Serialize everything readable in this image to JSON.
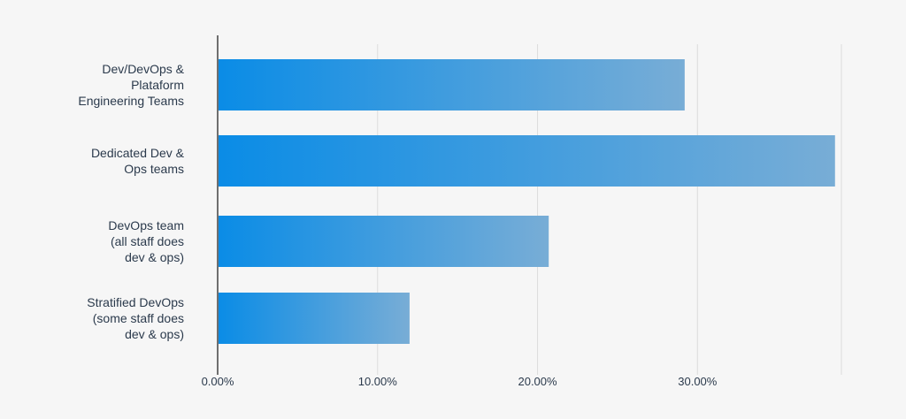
{
  "chart_data": {
    "type": "bar",
    "orientation": "horizontal",
    "title": "",
    "xlabel": "",
    "ylabel": "",
    "categories": [
      [
        "Dev/DevOps &",
        "Plataform",
        "Engineering Teams"
      ],
      [
        "Dedicated Dev &",
        "Ops teams"
      ],
      [
        "DevOps team",
        "(all staff does",
        "dev & ops)"
      ],
      [
        "Stratified DevOps",
        "(some staff does",
        "dev & ops)"
      ]
    ],
    "values": [
      29.2,
      38.6,
      20.7,
      12.0
    ],
    "xlim": [
      0,
      39
    ],
    "x_ticks": [
      {
        "value": 0,
        "label": "0.00%"
      },
      {
        "value": 10,
        "label": "10.00%"
      },
      {
        "value": 20,
        "label": "20.00%"
      },
      {
        "value": 30,
        "label": "30.00%"
      }
    ],
    "grid": true,
    "legend": "none",
    "colors": {
      "bar_start": "#0a8ce6",
      "bar_end": "#78add6",
      "grid": "#dcdcdc",
      "axis": "#6f6f6f",
      "text": "#2b3a4c",
      "background": "#f6f6f6"
    }
  }
}
